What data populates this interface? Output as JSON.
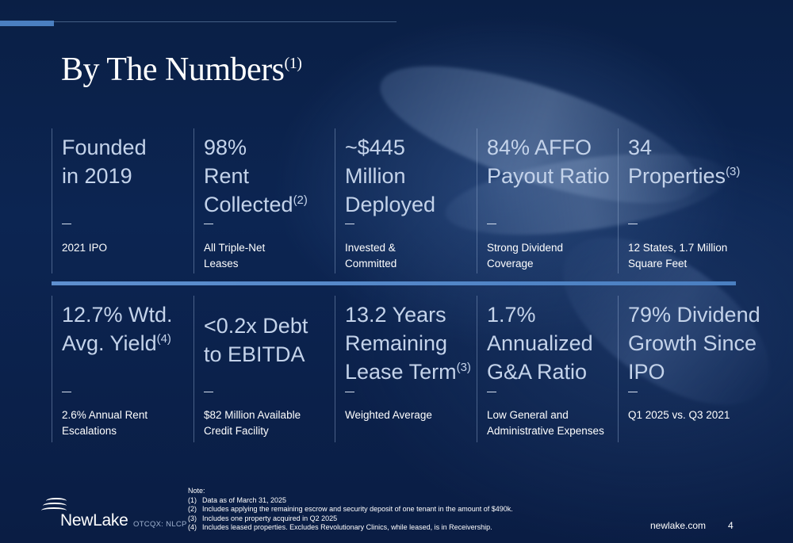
{
  "title": {
    "text": "By The Numbers",
    "note": "(1)"
  },
  "row1": [
    {
      "lines": [
        "Founded",
        "in 2019"
      ],
      "sup": "",
      "sub": [
        "2021 IPO"
      ]
    },
    {
      "lines": [
        "98%",
        "Rent",
        "Collected"
      ],
      "sup": "(2)",
      "sub": [
        "All Triple-Net",
        "Leases"
      ]
    },
    {
      "lines": [
        "~$445",
        "Million",
        "Deployed"
      ],
      "sup": "",
      "sub": [
        "Invested &",
        "Committed"
      ]
    },
    {
      "lines": [
        "84% AFFO",
        "Payout Ratio"
      ],
      "sup": "",
      "sub": [
        "Strong Dividend",
        "Coverage"
      ]
    },
    {
      "lines": [
        "34",
        "Properties"
      ],
      "sup": "(3)",
      "sub": [
        "12 States, 1.7 Million",
        "Square Feet"
      ]
    }
  ],
  "row2": [
    {
      "lines": [
        "12.7% Wtd.",
        "Avg. Yield"
      ],
      "sup": "(4)",
      "sub": [
        "2.6% Annual Rent",
        "Escalations"
      ]
    },
    {
      "lines": [
        "<0.2x Debt",
        "to EBITDA"
      ],
      "sup": "",
      "sub": [
        "$82 Million Available",
        "Credit Facility"
      ]
    },
    {
      "lines": [
        "13.2 Years",
        "Remaining",
        "Lease Term"
      ],
      "sup": "(3)",
      "sub": [
        "Weighted Average"
      ]
    },
    {
      "lines": [
        "1.7%",
        "Annualized",
        "G&A Ratio"
      ],
      "sup": "",
      "sub": [
        "Low General and",
        "Administrative Expenses"
      ]
    },
    {
      "lines": [
        "79% Dividend",
        "Growth Since",
        "IPO"
      ],
      "sup": "",
      "sub": [
        "Q1 2025 vs. Q3 2021"
      ]
    }
  ],
  "notes": {
    "heading": "Note:",
    "items": [
      {
        "num": "(1)",
        "text": "Data as of March 31, 2025"
      },
      {
        "num": "(2)",
        "text": "Includes applying the remaining escrow and security deposit of one tenant in the amount of $490k."
      },
      {
        "num": "(3)",
        "text": "Includes one property acquired in Q2 2025"
      },
      {
        "num": "(4)",
        "text": "Includes leased properties. Excludes Revolutionary Clinics, while leased, is in Receivership."
      }
    ]
  },
  "footer": {
    "logo": "NewLake",
    "ticker": "OTCQX: NLCP",
    "url": "newlake.com",
    "page": "4"
  },
  "colors": {
    "accent": "#4a7fc1",
    "stat_text": "#c4d3ea",
    "background": "#0c2552"
  }
}
